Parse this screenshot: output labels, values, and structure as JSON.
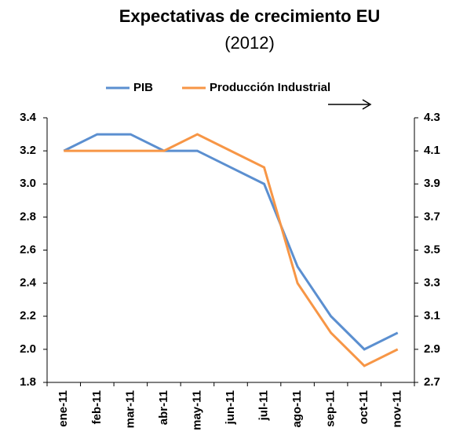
{
  "chart_data": {
    "type": "line",
    "title": "Expectativas de crecimiento EU",
    "subtitle": "(2012)",
    "categories": [
      "ene-11",
      "feb-11",
      "mar-11",
      "abr-11",
      "may-11",
      "jun-11",
      "jul-11",
      "ago-11",
      "sep-11",
      "oct-11",
      "nov-11"
    ],
    "series": [
      {
        "name": "PIB",
        "color": "#5b8fd0",
        "values": [
          3.2,
          3.3,
          3.3,
          3.2,
          3.2,
          3.1,
          3.0,
          2.5,
          2.2,
          2.0,
          2.1
        ]
      },
      {
        "name": "Producción Industrial",
        "color": "#f79646",
        "axis": "y2",
        "values": [
          4.1,
          4.1,
          4.1,
          4.1,
          4.2,
          4.1,
          4.0,
          3.3,
          3.0,
          2.8,
          2.9
        ]
      }
    ],
    "ylim": [
      1.8,
      3.4
    ],
    "yticks": [
      1.8,
      {
        "value": 2,
        "label": "2.0"
      },
      2.2,
      2.4,
      2.6,
      2.8,
      {
        "value": 3,
        "label": "3.0"
      },
      3.2,
      3.4
    ],
    "y2lim": [
      2.7,
      4.3
    ],
    "y2ticks": [
      2.7,
      2.9,
      3.1,
      3.3,
      3.5,
      3.7,
      3.9,
      4.1,
      4.3
    ],
    "grid": false,
    "legend": "top"
  }
}
